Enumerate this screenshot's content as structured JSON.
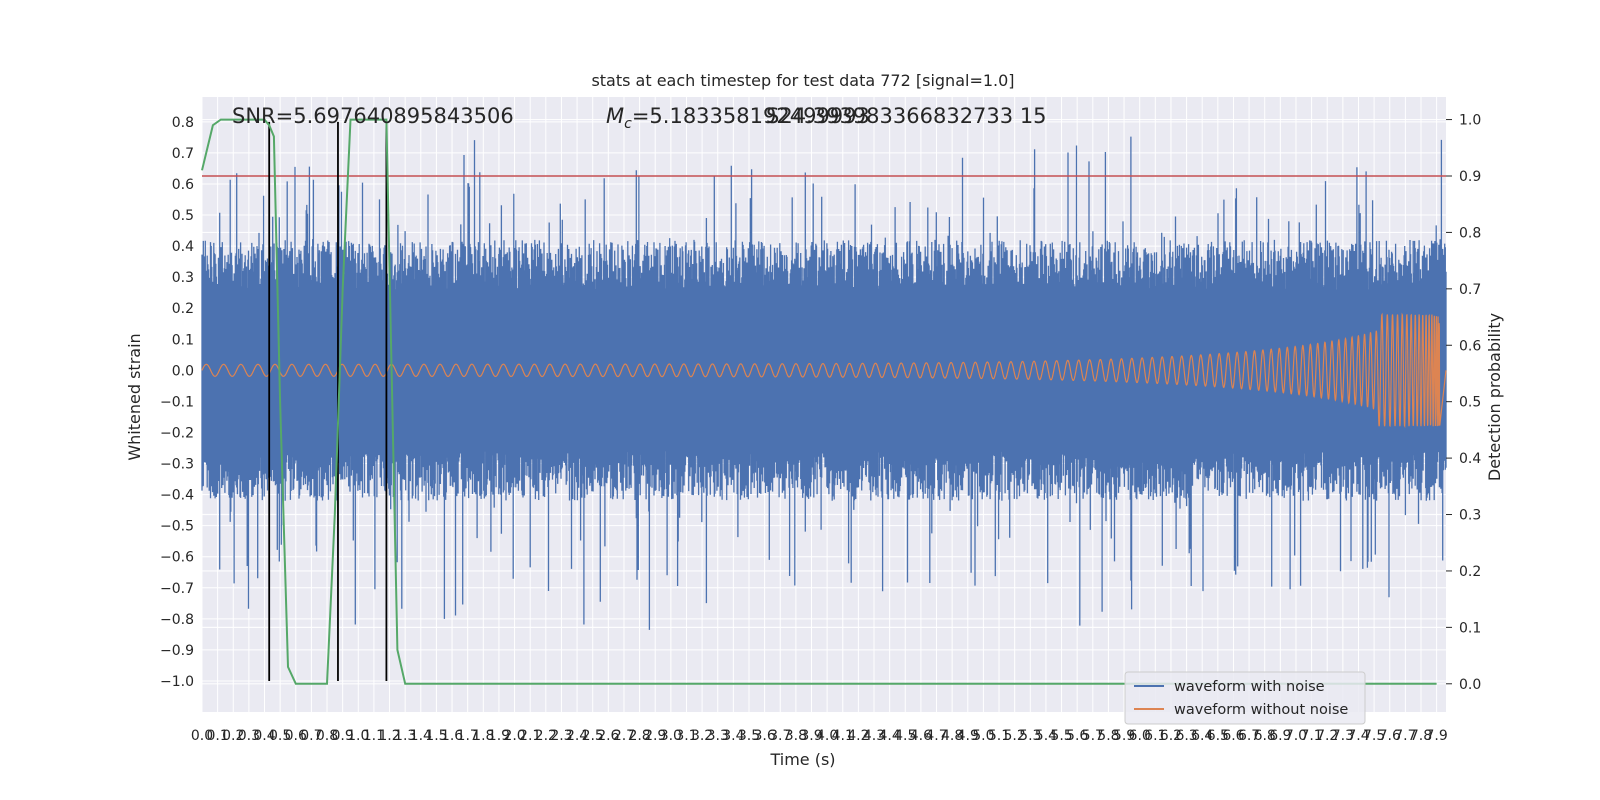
{
  "chart_data": {
    "type": "line",
    "title": "stats at each timestep for test data 772 [signal=1.0]",
    "xlabel": "Time (s)",
    "ylabel": "Whitened strain",
    "y2label": "Detection probability",
    "xlim": [
      0.0,
      7.96
    ],
    "ylim": [
      -1.1,
      0.88
    ],
    "y2lim": [
      -0.05,
      1.04
    ],
    "x_ticks": [
      "0.0",
      "0.1",
      "0.2",
      "0.3",
      "0.4",
      "0.5",
      "0.6",
      "0.7",
      "0.8",
      "0.9",
      "1.0",
      "1.1",
      "1.2",
      "1.3",
      "1.4",
      "1.5",
      "1.6",
      "1.7",
      "1.8",
      "1.9",
      "2.0",
      "2.1",
      "2.2",
      "2.3",
      "2.4",
      "2.5",
      "2.6",
      "2.7",
      "2.8",
      "2.9",
      "3.0",
      "3.1",
      "3.2",
      "3.3",
      "3.4",
      "3.5",
      "3.6",
      "3.7",
      "3.8",
      "3.9",
      "4.0",
      "4.1",
      "4.2",
      "4.3",
      "4.4",
      "4.5",
      "4.6",
      "4.7",
      "4.8",
      "4.9",
      "5.0",
      "5.1",
      "5.2",
      "5.3",
      "5.4",
      "5.5",
      "5.6",
      "5.7",
      "5.8",
      "5.9",
      "6.0",
      "6.1",
      "6.2",
      "6.3",
      "6.4",
      "6.5",
      "6.6",
      "6.7",
      "6.8",
      "6.9",
      "7.0",
      "7.1",
      "7.2",
      "7.3",
      "7.4",
      "7.5",
      "7.6",
      "7.7",
      "7.8",
      "7.9"
    ],
    "y_ticks": [
      "0.8",
      "0.7",
      "0.6",
      "0.5",
      "0.4",
      "0.3",
      "0.2",
      "0.1",
      "0.0",
      "−0.1",
      "−0.2",
      "−0.3",
      "−0.4",
      "−0.5",
      "−0.6",
      "−0.7",
      "−0.8",
      "−0.9",
      "−1.0"
    ],
    "y2_ticks": [
      "1.0",
      "0.9",
      "0.8",
      "0.7",
      "0.6",
      "0.5",
      "0.4",
      "0.3",
      "0.2",
      "0.1",
      "0.0"
    ],
    "series": [
      {
        "name": "waveform with noise",
        "color": "#4c72b0",
        "envelope_typical": 0.42,
        "peak_max": 0.8,
        "trough_min": -0.85
      },
      {
        "name": "waveform without noise",
        "color": "#dd8452",
        "amplitude_start": 0.012,
        "amplitude_end": 0.12,
        "merger_time": 7.92
      },
      {
        "name": "detection probability",
        "color": "#55a868",
        "axis": "right",
        "x": [
          0.0,
          0.07,
          0.12,
          0.2,
          0.4,
          0.43,
          0.46,
          0.5,
          0.55,
          0.6,
          0.8,
          0.85,
          0.9,
          0.95,
          1.0,
          1.1,
          1.15,
          1.18,
          1.25,
          1.3,
          1.35,
          7.9
        ],
        "y": [
          0.91,
          0.99,
          1.0,
          1.0,
          1.0,
          0.99,
          0.97,
          0.5,
          0.03,
          0.0,
          0.0,
          0.3,
          0.7,
          1.0,
          1.0,
          1.0,
          1.0,
          1.0,
          0.06,
          0.0,
          0.0,
          0.0
        ]
      }
    ],
    "threshold_line": {
      "value": 0.9,
      "axis": "right",
      "color": "#c44e52"
    },
    "vertical_markers": {
      "x": [
        0.43,
        0.87,
        1.18
      ],
      "color": "#000000",
      "from": -1.0,
      "to": 0.8
    },
    "annotations": [
      "SNR=5.697640895843506",
      "=5.183358192499993",
      "S24.393983366832733 15"
    ],
    "annotation_mc_symbol": "M",
    "annotation_mc_sub": "c",
    "grid": true,
    "background": "#eaeaf2",
    "legend_position": "lower-right"
  }
}
